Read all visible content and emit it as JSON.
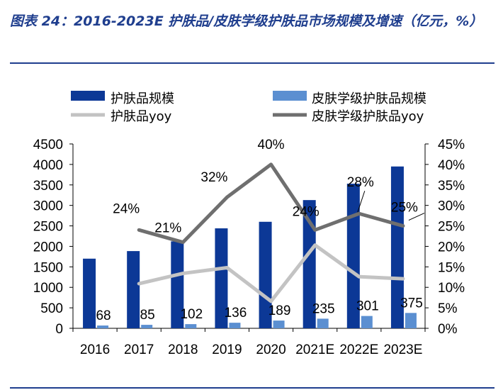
{
  "title": "图表 24：2016-2023E 护肤品/皮肤学级护肤品市场规模及增速（亿元，%）",
  "colors": {
    "bar1": "#0c3896",
    "bar2": "#5b8fd1",
    "line1": "#c3c3c3",
    "line2": "#6f6f6f",
    "title": "#1f3e8e"
  },
  "chart_data": {
    "type": "bar",
    "categories": [
      "2016",
      "2017",
      "2018",
      "2019",
      "2020",
      "2021E",
      "2022E",
      "2023E"
    ],
    "ylim_left": [
      0,
      4500
    ],
    "ylim_right": [
      0,
      45
    ],
    "yticks_left": [
      "0",
      "500",
      "1000",
      "1500",
      "2000",
      "2500",
      "3000",
      "3500",
      "4000",
      "4500"
    ],
    "yticks_right": [
      "0%",
      "5%",
      "10%",
      "15%",
      "20%",
      "25%",
      "30%",
      "35%",
      "40%",
      "45%"
    ],
    "legend": [
      "护肤品规模",
      "皮肤学级护肤品规模",
      "护肤品yoy",
      "皮肤学级护肤品yoy"
    ],
    "series": [
      {
        "name": "护肤品规模",
        "type": "bar",
        "axis": "left",
        "values": [
          1700,
          1885,
          2122,
          2440,
          2600,
          3130,
          3530,
          3950
        ]
      },
      {
        "name": "皮肤学级护肤品规模",
        "type": "bar",
        "axis": "left",
        "values": [
          68,
          85,
          102,
          136,
          189,
          235,
          301,
          375
        ],
        "labels": [
          "68",
          "85",
          "102",
          "136",
          "189",
          "235",
          "301",
          "375"
        ]
      },
      {
        "name": "护肤品yoy",
        "type": "line",
        "axis": "right",
        "values": [
          null,
          10.9,
          13.4,
          14.8,
          6.6,
          20.3,
          12.6,
          12.1
        ]
      },
      {
        "name": "皮肤学级护肤品yoy",
        "type": "line",
        "axis": "right",
        "values": [
          null,
          24,
          21,
          32,
          40,
          24,
          28,
          25
        ],
        "labels": [
          "",
          "24%",
          "21%",
          "32%",
          "40%",
          "24%",
          "28%",
          "25%"
        ]
      }
    ]
  }
}
